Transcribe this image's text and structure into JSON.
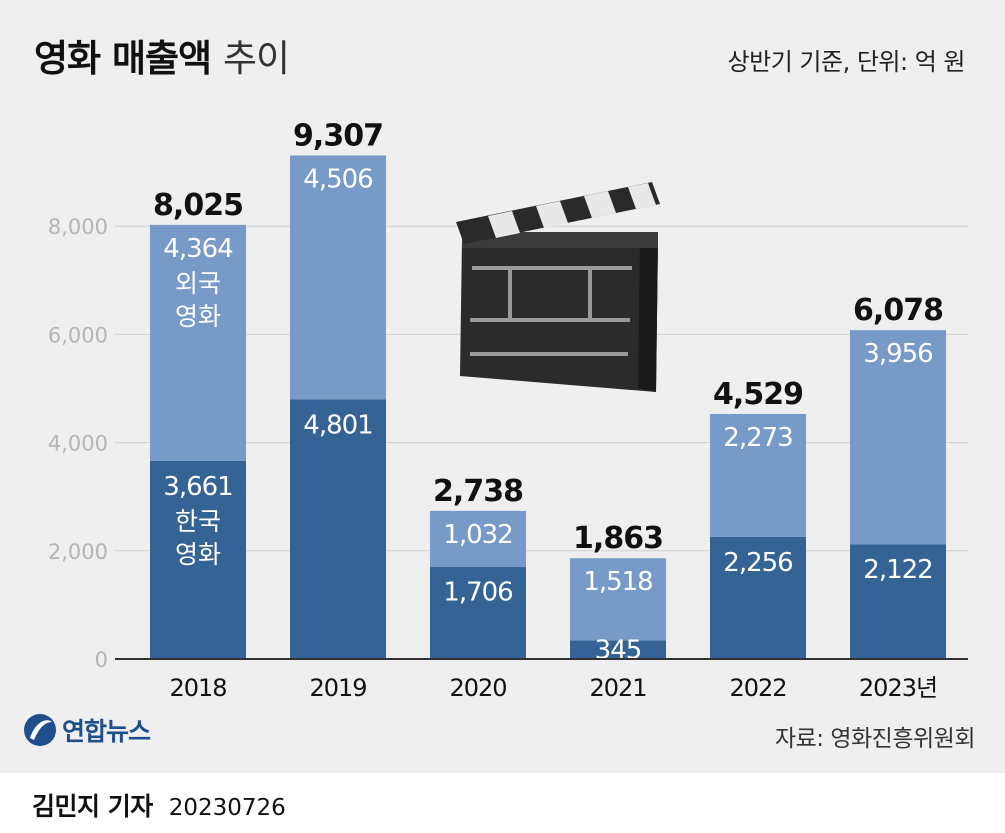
{
  "header": {
    "title_bold": "영화 매출액",
    "title_light": "추이",
    "basis": "상반기 기준, 단위: 억 원"
  },
  "chart_data": {
    "type": "bar",
    "stacked": true,
    "categories": [
      "2018",
      "2019",
      "2020",
      "2021",
      "2022",
      "2023년"
    ],
    "series": [
      {
        "name": "한국 영화",
        "values": [
          3661,
          4801,
          1706,
          345,
          2256,
          2122
        ],
        "color": "#356395"
      },
      {
        "name": "외국 영화",
        "values": [
          4364,
          4506,
          1032,
          1518,
          2273,
          3956
        ],
        "color": "#789ac8"
      }
    ],
    "totals": [
      8025,
      9307,
      2738,
      1863,
      4529,
      6078
    ],
    "total_labels": [
      "8,025",
      "9,307",
      "2,738",
      "1,863",
      "4,529",
      "6,078"
    ],
    "segment_labels": {
      "domestic": [
        "3,661",
        "4,801",
        "1,706",
        "345",
        "2,256",
        "2,122"
      ],
      "foreign": [
        "4,364",
        "4,506",
        "1,032",
        "1,518",
        "2,273",
        "3,956"
      ]
    },
    "series_annotations": {
      "domestic": [
        "한국",
        "영화"
      ],
      "foreign": [
        "외국",
        "영화"
      ]
    },
    "yticks": [
      0,
      2000,
      4000,
      6000,
      8000
    ],
    "ytick_labels": [
      "0",
      "2,000",
      "4,000",
      "6,000",
      "8,000"
    ],
    "ylim": [
      0,
      9307
    ],
    "grid": true,
    "legend": "none",
    "illustration": "clapperboard-icon"
  },
  "footer": {
    "logo_text": "연합뉴스",
    "source": "자료: 영화진흥위원회",
    "reporter": "김민지 기자",
    "date": "20230726"
  },
  "colors": {
    "domestic": "#356395",
    "foreign": "#789ac8",
    "background": "#efefef",
    "grid": "#cfcfcf",
    "tick": "#b5b5b5"
  }
}
